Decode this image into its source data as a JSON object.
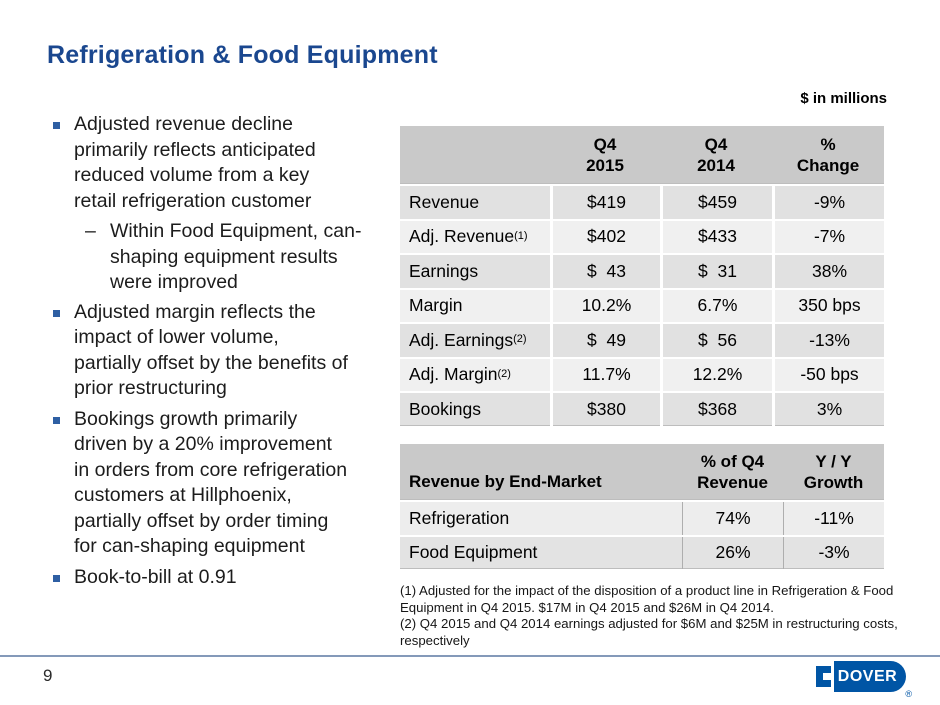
{
  "title": "Refrigeration & Food Equipment",
  "units_note": "$ in millions",
  "bullets": [
    {
      "text": "Adjusted revenue decline\nprimarily reflects anticipated\nreduced volume from a key\nretail refrigeration customer",
      "sub_dash": "–",
      "sub_text": "Within Food Equipment, can-\nshaping equipment results\nwere improved"
    },
    {
      "text": "Adjusted margin reflects the\nimpact of lower volume,\npartially offset by the benefits of\nprior restructuring"
    },
    {
      "text": "Bookings growth primarily\ndriven by a 20% improvement\nin orders from core refrigeration\ncustomers at Hillphoenix,\npartially offset by order timing\nfor can-shaping equipment"
    },
    {
      "text": "Book-to-bill at 0.91"
    }
  ],
  "financial_table": {
    "headers": [
      "",
      "Q4\n2015",
      "Q4\n2014",
      "%\nChange"
    ],
    "rows": [
      {
        "label": "Revenue",
        "sup": "",
        "q4_2015": "$419",
        "q4_2014": "$459",
        "change": "-9%"
      },
      {
        "label": "Adj. Revenue",
        "sup": "(1)",
        "q4_2015": "$402",
        "q4_2014": "$433",
        "change": "-7%"
      },
      {
        "label": "Earnings",
        "sup": "",
        "q4_2015": "$  43",
        "q4_2014": "$  31",
        "change": "38%"
      },
      {
        "label": "Margin",
        "sup": "",
        "q4_2015": "10.2%",
        "q4_2014": "6.7%",
        "change": "350 bps"
      },
      {
        "label": "Adj. Earnings",
        "sup": "(2)",
        "q4_2015": "$  49",
        "q4_2014": "$  56",
        "change": "-13%"
      },
      {
        "label": "Adj. Margin",
        "sup": "(2)",
        "q4_2015": "11.7%",
        "q4_2014": "12.2%",
        "change": "-50 bps"
      },
      {
        "label": "Bookings",
        "sup": "",
        "q4_2015": "$380",
        "q4_2014": "$368",
        "change": "3%"
      }
    ]
  },
  "endmarket_table": {
    "label_header": "Revenue by End-Market",
    "col_headers": [
      "% of Q4\nRevenue",
      "Y / Y\nGrowth"
    ],
    "rows": [
      {
        "label": "Refrigeration",
        "pct": "74%",
        "growth": "-11%"
      },
      {
        "label": "Food Equipment",
        "pct": "26%",
        "growth": "-3%"
      }
    ]
  },
  "footnotes": [
    "(1) Adjusted for the impact of the disposition of a product line in Refrigeration & Food\nEquipment in Q4 2015. $17M in Q4 2015 and $26M in Q4 2014.",
    "(2) Q4 2015 and Q4 2014 earnings adjusted for $6M and $25M in restructuring costs,\nrespectively"
  ],
  "footer": {
    "page_number": "9"
  },
  "logo": {
    "wordmark": "DOVER",
    "registered_mark": "®"
  },
  "colors": {
    "title_blue": "#1a478f",
    "bullet_blue": "#2e5fa3",
    "logo_blue": "#0055a5",
    "table_header_gray": "#c9c9c9",
    "row_dark_gray": "#e1e1e1",
    "row_light_gray": "#f0f0f0",
    "footer_line_blue": "#8499b9"
  }
}
